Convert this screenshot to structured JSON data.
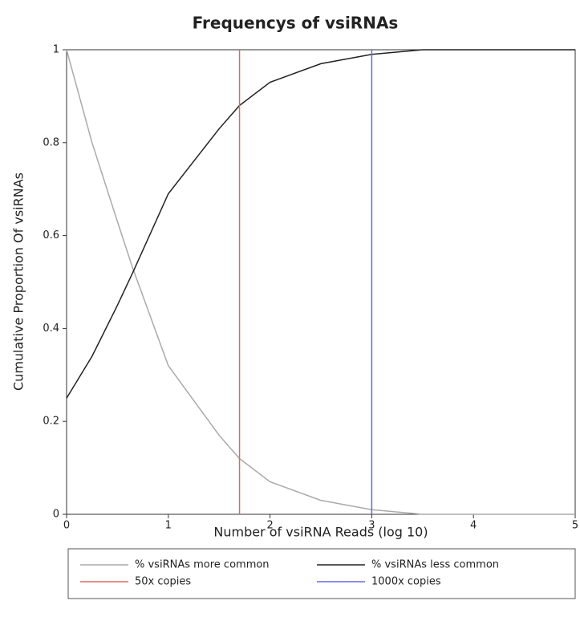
{
  "chart_data": {
    "type": "line",
    "title": "Frequencys of vsiRNAs",
    "xlabel": "Number of vsiRNA Reads (log 10)",
    "ylabel": "Cumulative Proportion Of vsiRNAs",
    "xlim": [
      0,
      5
    ],
    "ylim": [
      0,
      1
    ],
    "xticks": [
      0,
      1,
      2,
      3,
      4,
      5
    ],
    "yticks": [
      0,
      0.2,
      0.4,
      0.6,
      0.8,
      1
    ],
    "legend": "bottom",
    "series": [
      {
        "name": "% vsiRNAs more common",
        "color": "#aaaaaa",
        "x": [
          0,
          0.25,
          0.5,
          0.65,
          1,
          1.5,
          1.7,
          2,
          2.5,
          3,
          3.5,
          4,
          5
        ],
        "values": [
          1.0,
          0.8,
          0.63,
          0.53,
          0.32,
          0.17,
          0.12,
          0.07,
          0.03,
          0.01,
          0.0,
          0.0,
          0.0
        ]
      },
      {
        "name": "% vsiRNAs less common",
        "color": "#222222",
        "x": [
          0,
          0.25,
          0.5,
          0.65,
          1,
          1.5,
          1.7,
          2,
          2.5,
          3,
          3.5,
          4,
          5
        ],
        "values": [
          0.25,
          0.34,
          0.45,
          0.52,
          0.69,
          0.83,
          0.88,
          0.93,
          0.97,
          0.99,
          1.0,
          1.0,
          1.0
        ]
      },
      {
        "name": "50x copies",
        "color": "#e06666",
        "x": [
          1.7,
          1.7
        ],
        "values": [
          0,
          1
        ]
      },
      {
        "name": "1000x copies",
        "color": "#6666ee",
        "x": [
          3,
          3
        ],
        "values": [
          0,
          1
        ]
      }
    ]
  }
}
